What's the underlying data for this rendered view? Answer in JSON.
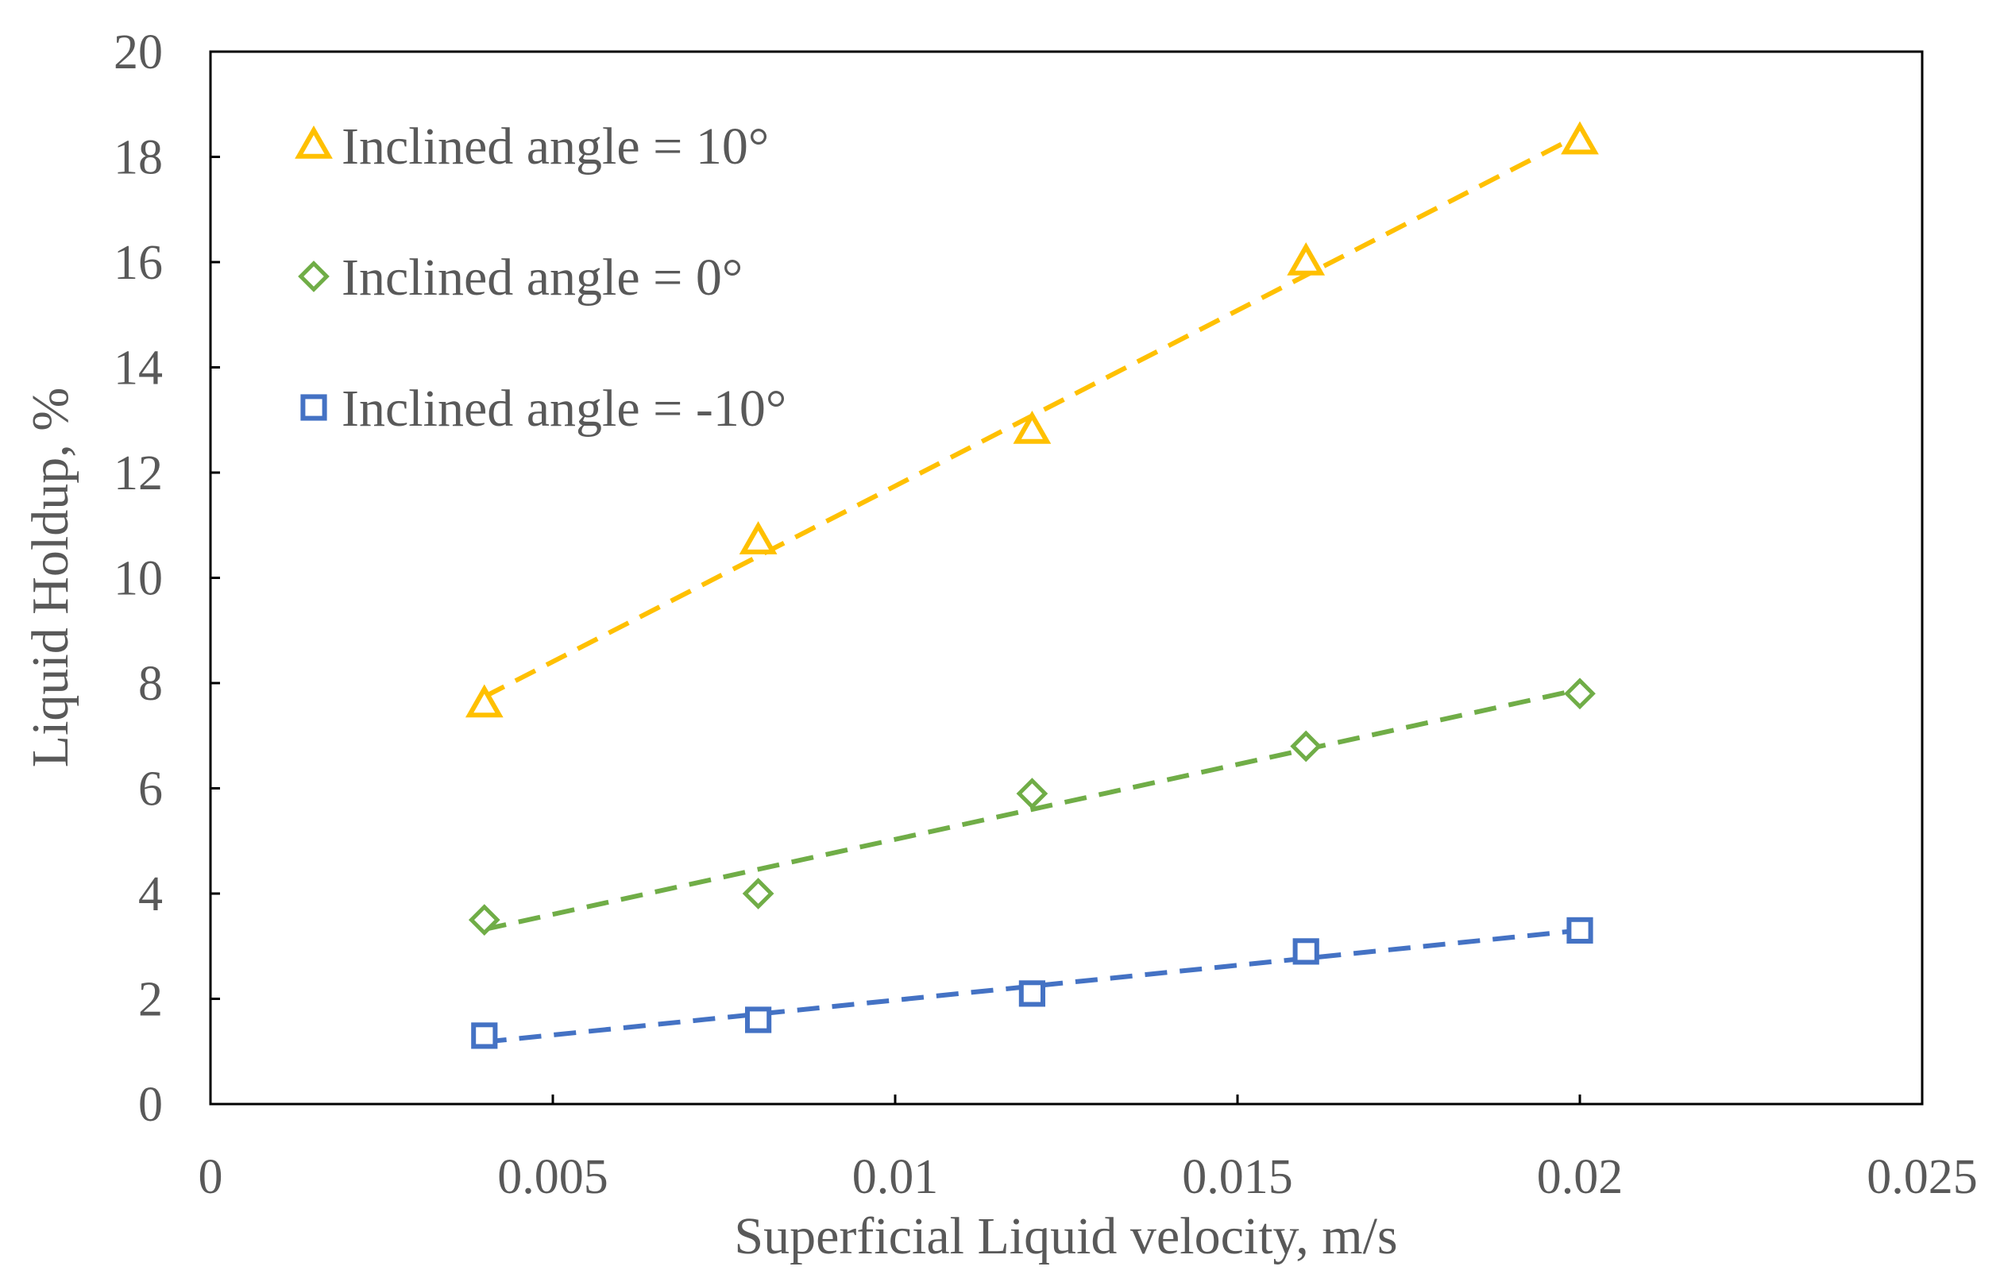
{
  "chart_data": {
    "type": "scatter",
    "title": "",
    "xlabel": "Superficial Liquid velocity, m/s",
    "ylabel": "Liquid Holdup, %",
    "xlim": [
      0,
      0.025
    ],
    "ylim": [
      0,
      20
    ],
    "x_ticks": [
      0,
      0.005,
      0.01,
      0.015,
      0.02,
      0.025
    ],
    "x_tick_labels": [
      "0",
      "0.005",
      "0.01",
      "0.015",
      "0.02",
      "0.025"
    ],
    "y_ticks": [
      0,
      2,
      4,
      6,
      8,
      10,
      12,
      14,
      16,
      18,
      20
    ],
    "y_tick_labels": [
      "0",
      "2",
      "4",
      "6",
      "8",
      "10",
      "12",
      "14",
      "16",
      "18",
      "20"
    ],
    "grid": false,
    "legend_position": "top-left",
    "trendlines": "dashed linear fit per series",
    "series": [
      {
        "name": "Inclined angle = 10°",
        "marker": "triangle",
        "color": "#FFC000",
        "x": [
          0.004,
          0.008,
          0.012,
          0.016,
          0.02
        ],
        "y": [
          7.6,
          10.7,
          12.8,
          16.0,
          18.3
        ]
      },
      {
        "name": "Inclined angle = 0°",
        "marker": "diamond",
        "color": "#70AD47",
        "x": [
          0.004,
          0.008,
          0.012,
          0.016,
          0.02
        ],
        "y": [
          3.5,
          4.0,
          5.9,
          6.8,
          7.8
        ]
      },
      {
        "name": "Inclined angle = -10°",
        "marker": "square",
        "color": "#4472C4",
        "x": [
          0.004,
          0.008,
          0.012,
          0.016,
          0.02
        ],
        "y": [
          1.3,
          1.6,
          2.1,
          2.9,
          3.3
        ]
      }
    ]
  }
}
